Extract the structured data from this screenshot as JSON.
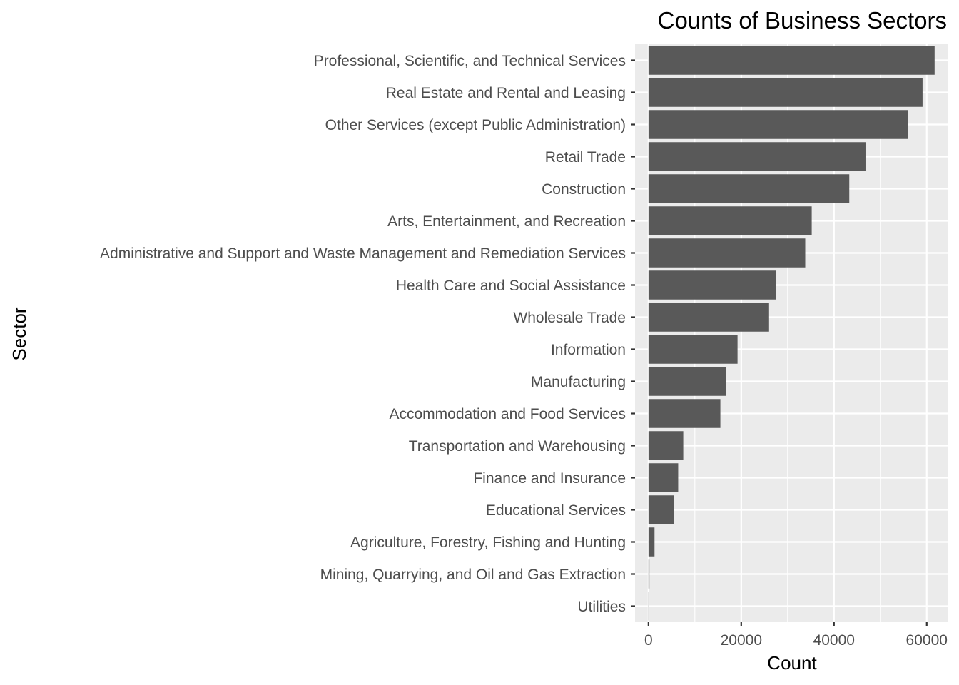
{
  "chart_data": {
    "type": "bar",
    "orientation": "horizontal",
    "title": "Counts of Business Sectors",
    "xlabel": "Count",
    "ylabel": "Sector",
    "xlim": [
      -2900,
      64500
    ],
    "xticks": [
      0,
      20000,
      40000,
      60000
    ],
    "xtick_labels": [
      "0",
      "20000",
      "40000",
      "60000"
    ],
    "grid": true,
    "legend": "none",
    "categories": [
      "Professional, Scientific, and Technical Services",
      "Real Estate and Rental and Leasing",
      "Other Services (except Public Administration)",
      "Retail Trade",
      "Construction",
      "Arts, Entertainment, and Recreation",
      "Administrative and Support and Waste Management and Remediation Services",
      "Health Care and Social Assistance",
      "Wholesale Trade",
      "Information",
      "Manufacturing",
      "Accommodation and Food Services",
      "Transportation and Warehousing",
      "Finance and Insurance",
      "Educational Services",
      "Agriculture, Forestry, Fishing and Hunting",
      "Mining, Quarrying, and Oil and Gas Extraction",
      "Utilities"
    ],
    "values": [
      61700,
      59100,
      55900,
      46800,
      43300,
      35200,
      33800,
      27500,
      26000,
      19200,
      16700,
      15500,
      7500,
      6400,
      5500,
      1300,
      200,
      30
    ],
    "colors": {
      "bar": "#595959",
      "panel": "#ebebeb",
      "grid_major": "#ffffff",
      "grid_minor": "#f5f5f5",
      "tick_text": "#4d4d4d",
      "tick_mark": "#333333"
    }
  }
}
